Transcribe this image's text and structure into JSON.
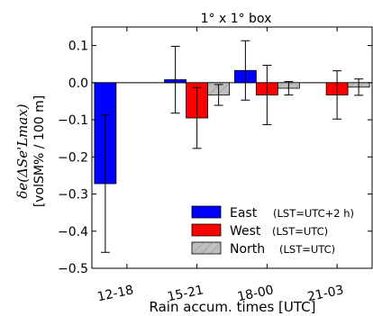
{
  "chart_data": {
    "type": "bar",
    "title": "1° x 1°  box",
    "xlabel": "Rain accum. times [UTC]",
    "ylabel": {
      "main": "δe(ΔSe'Lmax)",
      "sub": "[volSM% / 100 m]"
    },
    "categories": [
      "12-18",
      "15-21",
      "18-00",
      "21-03"
    ],
    "ylim": [
      -0.5,
      0.15
    ],
    "yticks": [
      -0.5,
      -0.4,
      -0.3,
      -0.2,
      -0.1,
      0.0,
      0.1
    ],
    "ytick_labels": [
      "−0.5",
      "−0.4",
      "−0.3",
      "−0.2",
      "−0.1",
      "0.0",
      "0.1"
    ],
    "grid": false,
    "legend_position": "bottom-right",
    "series": [
      {
        "name": "East",
        "note": "(LST=UTC+2 h)",
        "color": "#0000ff",
        "pattern": "solid",
        "values": [
          -0.272,
          0.008,
          0.033,
          null
        ],
        "errors": [
          0.185,
          0.09,
          0.08,
          null
        ]
      },
      {
        "name": "West",
        "note": "(LST=UTC)",
        "color": "#ff0000",
        "pattern": "solid",
        "values": [
          null,
          -0.095,
          -0.033,
          -0.033
        ],
        "errors": [
          null,
          0.082,
          0.08,
          0.065
        ]
      },
      {
        "name": "North",
        "note": "(LST=UTC)",
        "color": "#bfbfbf",
        "pattern": "hatch",
        "values": [
          null,
          -0.033,
          -0.015,
          -0.012
        ],
        "errors": [
          null,
          0.028,
          0.018,
          0.022
        ]
      }
    ]
  }
}
